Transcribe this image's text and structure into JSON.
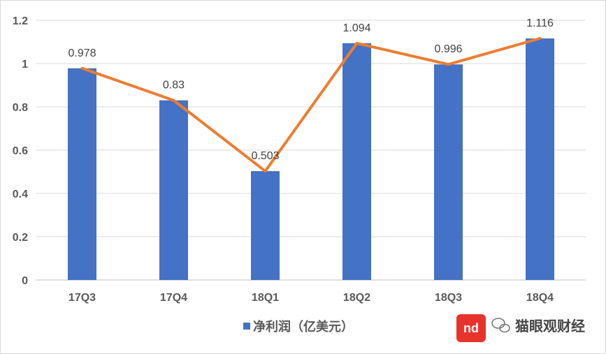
{
  "chart_data": {
    "type": "bar",
    "categories": [
      "17Q3",
      "17Q4",
      "18Q1",
      "18Q2",
      "18Q3",
      "18Q4"
    ],
    "series": [
      {
        "name": "净利润（亿美元）",
        "values": [
          0.978,
          0.83,
          0.503,
          1.094,
          0.996,
          1.116
        ],
        "color": "#4472C4",
        "kind": "bar"
      },
      {
        "values": [
          0.978,
          0.83,
          0.503,
          1.094,
          0.996,
          1.116
        ],
        "color": "#ED7D31",
        "kind": "line"
      }
    ],
    "data_labels": [
      "0.978",
      "0.83",
      "0.503",
      "1.094",
      "0.996",
      "1.116"
    ],
    "y_ticks": [
      "0",
      "0.2",
      "0.4",
      "0.6",
      "0.8",
      "1",
      "1.2"
    ],
    "ylim": [
      0,
      1.2
    ],
    "grid": true,
    "legend_position": "bottom",
    "title": "",
    "xlabel": "",
    "ylabel": ""
  },
  "watermark": {
    "logo_text": "nd",
    "account": "猫眼观财经"
  }
}
